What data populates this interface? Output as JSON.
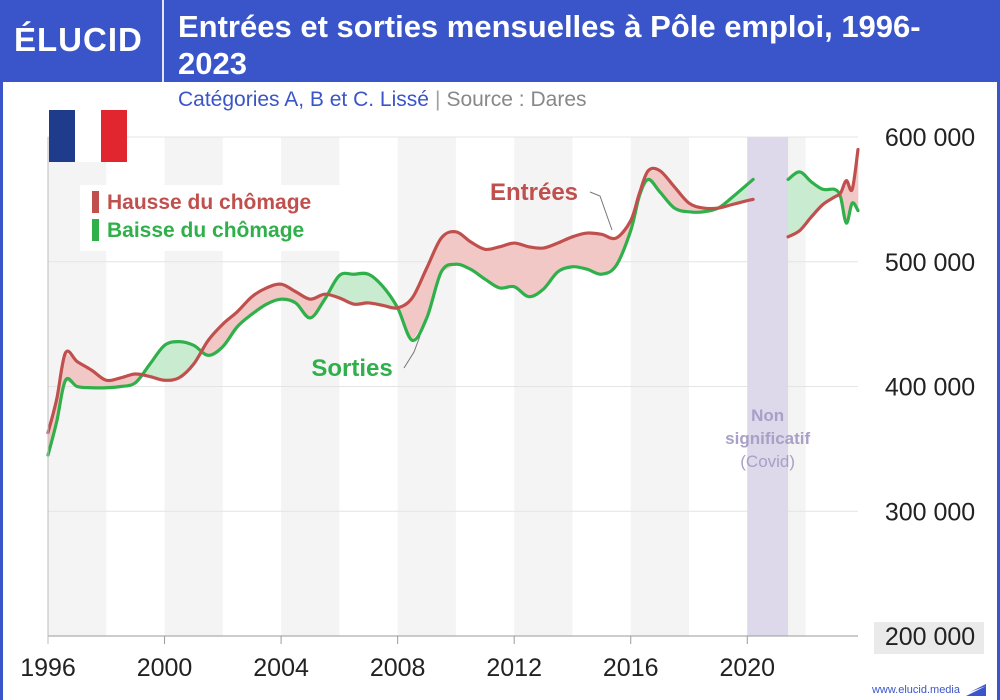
{
  "brand": {
    "logo": "ÉLUCID",
    "website": "www.elucid.media"
  },
  "header": {
    "title": "Entrées et sorties mensuelles à Pôle emploi, 1996-2023",
    "subtitle": "Catégories A, B et C. Lissé",
    "source": "Source : Dares"
  },
  "flag": {
    "colors": [
      "#1f3c8c",
      "#ffffff",
      "#e1262f"
    ]
  },
  "legend": {
    "hausse": "Hausse du chômage",
    "baisse": "Baisse du chômage"
  },
  "colors": {
    "brand": "#3a55c9",
    "entrees": "#c0504d",
    "sorties": "#2fb04a",
    "hausse_fill": "#f2c8c6",
    "baisse_fill": "#c9ecd1",
    "covid_band": "#ddd8ea",
    "covid_text": "#a99fc7"
  },
  "chart_data": {
    "type": "line",
    "title": "Entrées et sorties mensuelles à Pôle emploi, 1996-2023",
    "xlabel": "",
    "ylabel": "",
    "xlim": [
      1996,
      2023.8
    ],
    "ylim": [
      200000,
      600000
    ],
    "x_ticks": [
      1996,
      2000,
      2004,
      2008,
      2012,
      2016,
      2020
    ],
    "x_tick_labels": [
      "1996",
      "2000",
      "2004",
      "2008",
      "2012",
      "2016",
      "2020"
    ],
    "y_ticks": [
      200000,
      300000,
      400000,
      500000,
      600000
    ],
    "y_tick_labels": [
      "200 000",
      "300 000",
      "400 000",
      "500 000",
      "600 000"
    ],
    "y_axis_side": "right",
    "grid": "horizontal",
    "alternating_year_bands": true,
    "legend_position": "top-left",
    "series": [
      {
        "name": "Entrées",
        "x": [
          1996.0,
          1996.3,
          1996.6,
          1997.0,
          1997.5,
          1998.0,
          1998.5,
          1999.0,
          1999.5,
          2000.0,
          2000.5,
          2001.0,
          2001.5,
          2002.0,
          2002.5,
          2003.0,
          2003.5,
          2004.0,
          2004.5,
          2005.0,
          2005.5,
          2006.0,
          2006.5,
          2007.0,
          2007.5,
          2008.0,
          2008.5,
          2009.0,
          2009.5,
          2010.0,
          2010.5,
          2011.0,
          2011.5,
          2012.0,
          2012.5,
          2013.0,
          2013.5,
          2014.0,
          2014.5,
          2015.0,
          2015.5,
          2016.0,
          2016.3,
          2016.6,
          2017.0,
          2017.5,
          2018.0,
          2018.5,
          2019.0,
          2019.5,
          2020.0,
          2020.2,
          2021.4,
          2021.8,
          2022.2,
          2022.6,
          2023.0,
          2023.2,
          2023.4,
          2023.6,
          2023.8
        ],
        "values": [
          363000,
          390000,
          427000,
          420000,
          413000,
          405000,
          407000,
          410000,
          408000,
          405000,
          407000,
          418000,
          437000,
          450000,
          460000,
          472000,
          479000,
          482000,
          476000,
          470000,
          474000,
          471000,
          466000,
          467000,
          465000,
          463000,
          471000,
          495000,
          519000,
          524000,
          516000,
          510000,
          512000,
          515000,
          512000,
          511000,
          515000,
          520000,
          523000,
          522000,
          519000,
          533000,
          555000,
          573000,
          573000,
          560000,
          547000,
          543000,
          543000,
          546000,
          549000,
          550000,
          520000,
          525000,
          536000,
          546000,
          552000,
          555000,
          565000,
          558000,
          590000
        ]
      },
      {
        "name": "Sorties",
        "x": [
          1996.0,
          1996.3,
          1996.6,
          1997.0,
          1997.5,
          1998.0,
          1998.5,
          1999.0,
          1999.5,
          2000.0,
          2000.5,
          2001.0,
          2001.5,
          2002.0,
          2002.5,
          2003.0,
          2003.5,
          2004.0,
          2004.5,
          2005.0,
          2005.5,
          2006.0,
          2006.5,
          2007.0,
          2007.5,
          2008.0,
          2008.5,
          2009.0,
          2009.5,
          2010.0,
          2010.5,
          2011.0,
          2011.5,
          2012.0,
          2012.5,
          2013.0,
          2013.5,
          2014.0,
          2014.5,
          2015.0,
          2015.5,
          2016.0,
          2016.3,
          2016.6,
          2017.0,
          2017.5,
          2018.0,
          2018.5,
          2019.0,
          2019.5,
          2020.0,
          2020.2,
          2021.4,
          2021.8,
          2022.2,
          2022.6,
          2023.0,
          2023.2,
          2023.4,
          2023.6,
          2023.8
        ],
        "values": [
          345000,
          372000,
          405000,
          400000,
          399000,
          399000,
          400000,
          403000,
          418000,
          433000,
          436000,
          433000,
          425000,
          432000,
          448000,
          458000,
          466000,
          470000,
          467000,
          455000,
          470000,
          489000,
          490000,
          490000,
          480000,
          463000,
          437000,
          455000,
          492000,
          498000,
          494000,
          486000,
          479000,
          480000,
          472000,
          478000,
          492000,
          496000,
          494000,
          490000,
          497000,
          525000,
          553000,
          566000,
          556000,
          543000,
          540000,
          540000,
          543000,
          552000,
          562000,
          566000,
          566000,
          572000,
          564000,
          558000,
          558000,
          552000,
          531000,
          547000,
          541000
        ]
      }
    ],
    "annotations": [
      {
        "text": "Entrées",
        "series": "Entrées"
      },
      {
        "text": "Sorties",
        "series": "Sorties"
      },
      {
        "text": "Non significatif (Covid)",
        "x_range": [
          2020.0,
          2021.4
        ],
        "lines": [
          "Non",
          "significatif",
          "(Covid)"
        ]
      }
    ]
  }
}
